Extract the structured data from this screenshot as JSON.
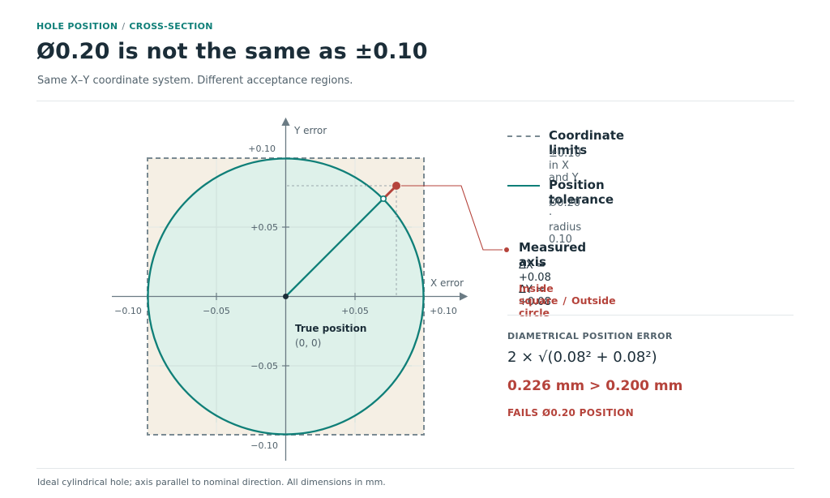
{
  "header": {
    "kicker_a": "HOLE POSITION",
    "kicker_sep": "/",
    "kicker_b": "CROSS-SECTION",
    "title": "Ø0.20 is not the same as ±0.10",
    "subtitle": "Same X–Y coordinate system. Different acceptance regions."
  },
  "plot": {
    "y_axis_label": "Y error",
    "x_axis_label": "X error",
    "x_ticks": [
      "−0.10",
      "−0.05",
      "+0.05",
      "+0.10"
    ],
    "y_ticks": [
      "+0.10",
      "+0.05",
      "−0.05",
      "−0.10"
    ],
    "origin_label": "True position",
    "origin_coords": "(0, 0)",
    "square_half_width": 0.1,
    "circle_radius": 0.1,
    "measured_point": {
      "x": 0.08,
      "y": 0.08
    },
    "colors": {
      "square_fill": "#f5efe4",
      "circle_fill": "#dcf0ea",
      "circle_stroke": "#0f7f78",
      "square_stroke": "#7a8a92",
      "point": "#b5433b"
    }
  },
  "legend": {
    "coordinate": {
      "title": "Coordinate limits",
      "sub": "±0.10 in X and Y"
    },
    "position": {
      "title": "Position tolerance",
      "sub": "Ø0.20  ·  radius 0.10"
    },
    "measured": {
      "title": "Measured axis",
      "values": "ΔX = +0.08   ΔY = +0.08",
      "status_a": "Inside square",
      "status_sep": "/",
      "status_b": "Outside circle"
    }
  },
  "calc": {
    "heading": "DIAMETRICAL POSITION ERROR",
    "formula": "2 × √(0.08² + 0.08²)",
    "result": "0.226 mm > 0.200 mm",
    "verdict": "FAILS Ø0.20 POSITION"
  },
  "footer": "Ideal cylindrical hole; axis parallel to nominal direction. All dimensions in mm."
}
